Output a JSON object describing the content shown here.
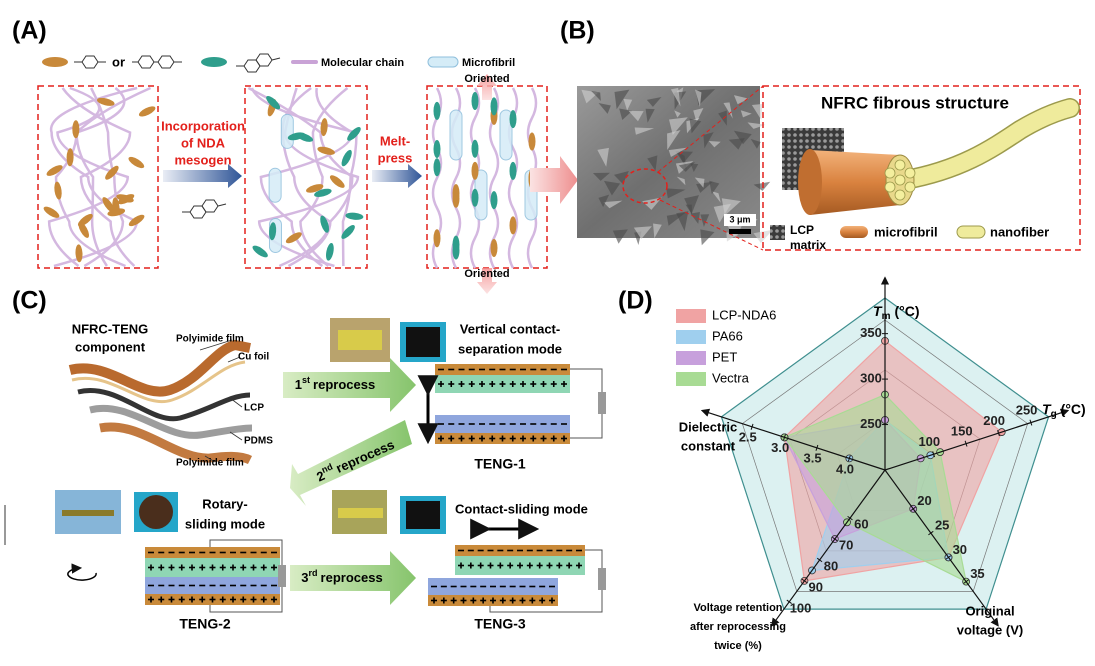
{
  "panel_a": {
    "label": "(A)",
    "legend_or": "or",
    "legend_chain": "Molecular chain",
    "legend_microfibril": "Microfibril",
    "step1": [
      "Incorporation",
      "of NDA",
      "mesogen"
    ],
    "step2": [
      "Melt-",
      "press"
    ],
    "oriented_top": "Oriented",
    "oriented_bottom": "Oriented"
  },
  "panel_b": {
    "label": "(B)",
    "title": "NFRC fibrous structure",
    "scale_bar": "3 μm",
    "legend_matrix": [
      "LCP",
      "matrix"
    ],
    "legend_microfibril": "microfibril",
    "legend_nanofiber": "nanofiber"
  },
  "panel_c": {
    "label": "(C)",
    "component_title": [
      "NFRC-TENG",
      "component"
    ],
    "layers": [
      "Polyimide film",
      "Cu foil",
      "LCP",
      "PDMS",
      "Polyimide film"
    ],
    "reprocess": [
      {
        "ordinal": "1",
        "suffix": "st",
        "text": "reprocess"
      },
      {
        "ordinal": "2",
        "suffix": "nd",
        "text": "reprocess"
      },
      {
        "ordinal": "3",
        "suffix": "rd",
        "text": "reprocess"
      }
    ],
    "mode_vertical": [
      "Vertical contact-",
      "separation mode"
    ],
    "mode_rotary": [
      "Rotary-",
      "sliding mode"
    ],
    "mode_contact_sliding": "Contact-sliding mode",
    "teng1": "TENG-1",
    "teng2": "TENG-2",
    "teng3": "TENG-3"
  },
  "chart_data": {
    "type": "radar",
    "panel_label": "(D)",
    "axes": [
      {
        "symbol": "T",
        "sub": "m",
        "unit": "(°C)",
        "lim": [
          200,
          365
        ],
        "ticks": [
          250,
          300,
          350
        ]
      },
      {
        "symbol": "T",
        "sub": "g",
        "unit": "(°C)",
        "lim": [
          25,
          245
        ],
        "ticks": [
          100,
          150,
          200,
          250
        ]
      },
      {
        "label_lines": [
          "Original",
          "voltage (V)"
        ],
        "lim": [
          12,
          37
        ],
        "ticks": [
          20,
          25,
          30,
          35
        ]
      },
      {
        "label_lines": [
          "Voltage retention",
          "after reprocessing",
          "twice (%)"
        ],
        "lim": [
          37,
          95
        ],
        "ticks": [
          60,
          70,
          80,
          90,
          100
        ]
      },
      {
        "label_lines": [
          "Dielectric",
          "constant"
        ],
        "lim": [
          4.55,
          2.35
        ],
        "ticks": [
          {
            "value": 4.0,
            "label": "4.0"
          },
          {
            "value": 3.5,
            "label": "3.5"
          },
          {
            "value": 3.0,
            "label": "3.0"
          },
          {
            "value": 2.5,
            "label": "2.5"
          }
        ]
      }
    ],
    "series": [
      {
        "name": "LCP-NDA6",
        "color": "#f0a3a3",
        "values": [
          342,
          205,
          30,
          90,
          3.0
        ]
      },
      {
        "name": "PA66",
        "color": "#9fcfee",
        "values": [
          255,
          95,
          30,
          85,
          4.0
        ]
      },
      {
        "name": "PET",
        "color": "#c7a0dc",
        "values": [
          255,
          80,
          20,
          70,
          3.0
        ]
      },
      {
        "name": "Vectra",
        "color": "#a8db94",
        "values": [
          283,
          110,
          35,
          62,
          3.0
        ]
      }
    ]
  }
}
